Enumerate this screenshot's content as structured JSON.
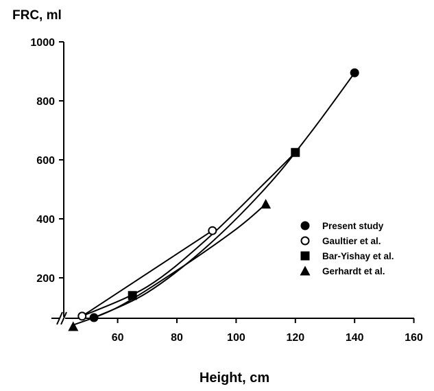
{
  "chart_data": {
    "type": "scatter",
    "ylabel": "FRC, ml",
    "xlabel": "Height, cm",
    "xlim": [
      40,
      160
    ],
    "ylim": [
      0,
      1000
    ],
    "x_ticks": [
      60,
      80,
      100,
      120,
      140,
      160
    ],
    "y_ticks": [
      200,
      400,
      600,
      800,
      1000
    ],
    "x_axis_break": true,
    "grid": false,
    "legend_position": "right",
    "series": [
      {
        "name": "Present study",
        "marker": "filled-circle",
        "x": [
          52,
          140
        ],
        "y": [
          65,
          895
        ]
      },
      {
        "name": "Gaultier et al.",
        "marker": "open-circle",
        "x": [
          48,
          92
        ],
        "y": [
          70,
          360
        ]
      },
      {
        "name": "Bar-Yishay et al.",
        "marker": "filled-square",
        "x": [
          65,
          120
        ],
        "y": [
          140,
          625
        ]
      },
      {
        "name": "Gerhardt et al.",
        "marker": "filled-triangle",
        "x": [
          45,
          110
        ],
        "y": [
          35,
          450
        ]
      }
    ],
    "fitted_curves": [
      {
        "x": [
          52,
          70,
          90,
          110,
          125,
          140
        ],
        "y": [
          65,
          150,
          305,
          505,
          690,
          895
        ]
      },
      {
        "x": [
          48,
          70,
          90,
          110,
          120
        ],
        "y": [
          70,
          170,
          330,
          525,
          625
        ]
      },
      {
        "x": [
          48,
          92
        ],
        "y": [
          70,
          360
        ]
      },
      {
        "x": [
          45,
          60,
          80,
          100,
          110
        ],
        "y": [
          40,
          100,
          225,
          365,
          450
        ]
      }
    ]
  }
}
